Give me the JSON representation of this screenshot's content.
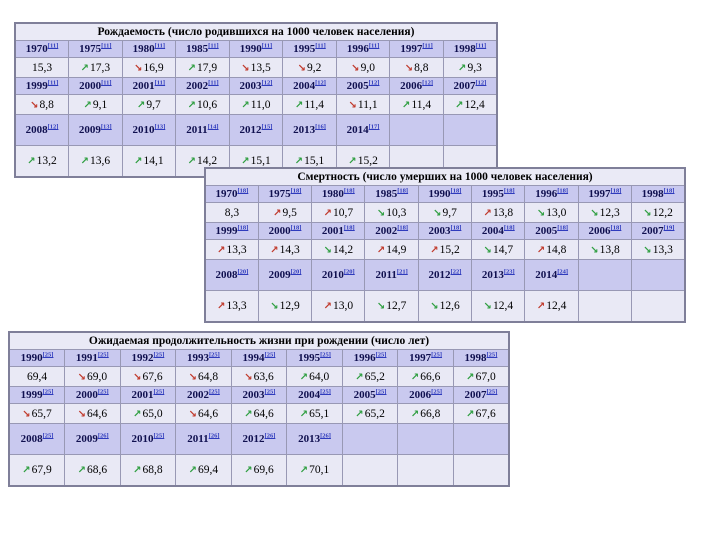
{
  "meta": {
    "language": "ru",
    "accent_colors": {
      "good_trend_green": "#2e9e40",
      "bad_trend_red": "#c0392b",
      "year_header_bg": "#c9c9ef",
      "value_cell_bg": "#e9e9f5",
      "citation_blue": "#2f3bbd"
    }
  },
  "tables": [
    {
      "name": "birth-rate",
      "title": "Рождаемость (число родившихся на 1000 человек населения)",
      "blocks": [
        {
          "years": [
            {
              "y": "1970",
              "c": "[11]"
            },
            {
              "y": "1975",
              "c": "[11]"
            },
            {
              "y": "1980",
              "c": "[11]"
            },
            {
              "y": "1985",
              "c": "[11]"
            },
            {
              "y": "1990",
              "c": "[11]"
            },
            {
              "y": "1995",
              "c": "[11]"
            },
            {
              "y": "1996",
              "c": "[11]"
            },
            {
              "y": "1997",
              "c": "[11]"
            },
            {
              "y": "1998",
              "c": "[11]"
            }
          ],
          "values": [
            {
              "v": "15,3",
              "a": "",
              "k": ""
            },
            {
              "v": "17,3",
              "a": "up",
              "k": "g"
            },
            {
              "v": "16,9",
              "a": "down",
              "k": "r"
            },
            {
              "v": "17,9",
              "a": "up",
              "k": "g"
            },
            {
              "v": "13,5",
              "a": "down",
              "k": "r"
            },
            {
              "v": "9,2",
              "a": "down",
              "k": "r"
            },
            {
              "v": "9,0",
              "a": "down",
              "k": "r"
            },
            {
              "v": "8,8",
              "a": "down",
              "k": "r"
            },
            {
              "v": "9,3",
              "a": "up",
              "k": "g"
            }
          ]
        },
        {
          "years": [
            {
              "y": "1999",
              "c": "[11]"
            },
            {
              "y": "2000",
              "c": "[11]"
            },
            {
              "y": "2001",
              "c": "[11]"
            },
            {
              "y": "2002",
              "c": "[11]"
            },
            {
              "y": "2003",
              "c": "[12]"
            },
            {
              "y": "2004",
              "c": "[12]"
            },
            {
              "y": "2005",
              "c": "[12]"
            },
            {
              "y": "2006",
              "c": "[12]"
            },
            {
              "y": "2007",
              "c": "[12]"
            }
          ],
          "values": [
            {
              "v": "8,8",
              "a": "down",
              "k": "r"
            },
            {
              "v": "9,1",
              "a": "up",
              "k": "g"
            },
            {
              "v": "9,7",
              "a": "up",
              "k": "g"
            },
            {
              "v": "10,6",
              "a": "up",
              "k": "g"
            },
            {
              "v": "11,0",
              "a": "up",
              "k": "g"
            },
            {
              "v": "11,4",
              "a": "up",
              "k": "g"
            },
            {
              "v": "11,1",
              "a": "down",
              "k": "r"
            },
            {
              "v": "11,4",
              "a": "up",
              "k": "g"
            },
            {
              "v": "12,4",
              "a": "up",
              "k": "g"
            }
          ]
        },
        {
          "years": [
            {
              "y": "2008",
              "c": "[12]"
            },
            {
              "y": "2009",
              "c": "[13]"
            },
            {
              "y": "2010",
              "c": "[13]"
            },
            {
              "y": "2011",
              "c": "[14]"
            },
            {
              "y": "2012",
              "c": "[15]"
            },
            {
              "y": "2013",
              "c": "[16]"
            },
            {
              "y": "2014",
              "c": "[17]"
            },
            {
              "y": "",
              "c": ""
            },
            {
              "y": "",
              "c": ""
            }
          ],
          "values": [
            {
              "v": "13,2",
              "a": "up",
              "k": "g"
            },
            {
              "v": "13,6",
              "a": "up",
              "k": "g"
            },
            {
              "v": "14,1",
              "a": "up",
              "k": "g"
            },
            {
              "v": "14,2",
              "a": "up",
              "k": "g"
            },
            {
              "v": "15,1",
              "a": "up",
              "k": "g"
            },
            {
              "v": "15,1",
              "a": "up",
              "k": "g"
            },
            {
              "v": "15,2",
              "a": "up",
              "k": "g"
            },
            {
              "v": "",
              "a": "",
              "k": ""
            },
            {
              "v": "",
              "a": "",
              "k": ""
            }
          ]
        }
      ]
    },
    {
      "name": "death-rate",
      "title": "Смертность (число умерших на 1000 человек населения)",
      "blocks": [
        {
          "years": [
            {
              "y": "1970",
              "c": "[18]"
            },
            {
              "y": "1975",
              "c": "[18]"
            },
            {
              "y": "1980",
              "c": "[18]"
            },
            {
              "y": "1985",
              "c": "[18]"
            },
            {
              "y": "1990",
              "c": "[18]"
            },
            {
              "y": "1995",
              "c": "[18]"
            },
            {
              "y": "1996",
              "c": "[18]"
            },
            {
              "y": "1997",
              "c": "[18]"
            },
            {
              "y": "1998",
              "c": "[18]"
            }
          ],
          "values": [
            {
              "v": "8,3",
              "a": "",
              "k": ""
            },
            {
              "v": "9,5",
              "a": "up",
              "k": "r"
            },
            {
              "v": "10,7",
              "a": "up",
              "k": "r"
            },
            {
              "v": "10,3",
              "a": "down",
              "k": "g"
            },
            {
              "v": "9,7",
              "a": "down",
              "k": "g"
            },
            {
              "v": "13,8",
              "a": "up",
              "k": "r"
            },
            {
              "v": "13,0",
              "a": "down",
              "k": "g"
            },
            {
              "v": "12,3",
              "a": "down",
              "k": "g"
            },
            {
              "v": "12,2",
              "a": "down",
              "k": "g"
            }
          ]
        },
        {
          "years": [
            {
              "y": "1999",
              "c": "[18]"
            },
            {
              "y": "2000",
              "c": "[18]"
            },
            {
              "y": "2001",
              "c": "[18]"
            },
            {
              "y": "2002",
              "c": "[18]"
            },
            {
              "y": "2003",
              "c": "[18]"
            },
            {
              "y": "2004",
              "c": "[18]"
            },
            {
              "y": "2005",
              "c": "[18]"
            },
            {
              "y": "2006",
              "c": "[18]"
            },
            {
              "y": "2007",
              "c": "[19]"
            }
          ],
          "values": [
            {
              "v": "13,3",
              "a": "up",
              "k": "r"
            },
            {
              "v": "14,3",
              "a": "up",
              "k": "r"
            },
            {
              "v": "14,2",
              "a": "down",
              "k": "g"
            },
            {
              "v": "14,9",
              "a": "up",
              "k": "r"
            },
            {
              "v": "15,2",
              "a": "up",
              "k": "r"
            },
            {
              "v": "14,7",
              "a": "down",
              "k": "g"
            },
            {
              "v": "14,8",
              "a": "up",
              "k": "r"
            },
            {
              "v": "13,8",
              "a": "down",
              "k": "g"
            },
            {
              "v": "13,3",
              "a": "down",
              "k": "g"
            }
          ]
        },
        {
          "years": [
            {
              "y": "2008",
              "c": "[20]"
            },
            {
              "y": "2009",
              "c": "[20]"
            },
            {
              "y": "2010",
              "c": "[20]"
            },
            {
              "y": "2011",
              "c": "[21]"
            },
            {
              "y": "2012",
              "c": "[22]"
            },
            {
              "y": "2013",
              "c": "[23]"
            },
            {
              "y": "2014",
              "c": "[24]"
            },
            {
              "y": "",
              "c": ""
            },
            {
              "y": "",
              "c": ""
            }
          ],
          "values": [
            {
              "v": "13,3",
              "a": "up",
              "k": "r"
            },
            {
              "v": "12,9",
              "a": "down",
              "k": "g"
            },
            {
              "v": "13,0",
              "a": "up",
              "k": "r"
            },
            {
              "v": "12,7",
              "a": "down",
              "k": "g"
            },
            {
              "v": "12,6",
              "a": "down",
              "k": "g"
            },
            {
              "v": "12,4",
              "a": "down",
              "k": "g"
            },
            {
              "v": "12,4",
              "a": "up",
              "k": "r"
            },
            {
              "v": "",
              "a": "",
              "k": ""
            },
            {
              "v": "",
              "a": "",
              "k": ""
            }
          ]
        }
      ]
    },
    {
      "name": "life-expectancy",
      "title": "Ожидаемая продолжительность жизни при рождении (число лет)",
      "blocks": [
        {
          "years": [
            {
              "y": "1990",
              "c": "[25]"
            },
            {
              "y": "1991",
              "c": "[25]"
            },
            {
              "y": "1992",
              "c": "[25]"
            },
            {
              "y": "1993",
              "c": "[25]"
            },
            {
              "y": "1994",
              "c": "[25]"
            },
            {
              "y": "1995",
              "c": "[25]"
            },
            {
              "y": "1996",
              "c": "[25]"
            },
            {
              "y": "1997",
              "c": "[25]"
            },
            {
              "y": "1998",
              "c": "[25]"
            }
          ],
          "values": [
            {
              "v": "69,4",
              "a": "",
              "k": ""
            },
            {
              "v": "69,0",
              "a": "down",
              "k": "r"
            },
            {
              "v": "67,6",
              "a": "down",
              "k": "r"
            },
            {
              "v": "64,8",
              "a": "down",
              "k": "r"
            },
            {
              "v": "63,6",
              "a": "down",
              "k": "r"
            },
            {
              "v": "64,0",
              "a": "up",
              "k": "g"
            },
            {
              "v": "65,2",
              "a": "up",
              "k": "g"
            },
            {
              "v": "66,6",
              "a": "up",
              "k": "g"
            },
            {
              "v": "67,0",
              "a": "up",
              "k": "g"
            }
          ]
        },
        {
          "years": [
            {
              "y": "1999",
              "c": "[25]"
            },
            {
              "y": "2000",
              "c": "[25]"
            },
            {
              "y": "2001",
              "c": "[25]"
            },
            {
              "y": "2002",
              "c": "[25]"
            },
            {
              "y": "2003",
              "c": "[25]"
            },
            {
              "y": "2004",
              "c": "[25]"
            },
            {
              "y": "2005",
              "c": "[25]"
            },
            {
              "y": "2006",
              "c": "[25]"
            },
            {
              "y": "2007",
              "c": "[25]"
            }
          ],
          "values": [
            {
              "v": "65,7",
              "a": "down",
              "k": "r"
            },
            {
              "v": "64,6",
              "a": "down",
              "k": "r"
            },
            {
              "v": "65,0",
              "a": "up",
              "k": "g"
            },
            {
              "v": "64,6",
              "a": "down",
              "k": "r"
            },
            {
              "v": "64,6",
              "a": "up",
              "k": "g"
            },
            {
              "v": "65,1",
              "a": "up",
              "k": "g"
            },
            {
              "v": "65,2",
              "a": "up",
              "k": "g"
            },
            {
              "v": "66,8",
              "a": "up",
              "k": "g"
            },
            {
              "v": "67,6",
              "a": "up",
              "k": "g"
            }
          ]
        },
        {
          "years": [
            {
              "y": "2008",
              "c": "[25]"
            },
            {
              "y": "2009",
              "c": "[26]"
            },
            {
              "y": "2010",
              "c": "[25]"
            },
            {
              "y": "2011",
              "c": "[26]"
            },
            {
              "y": "2012",
              "c": "[26]"
            },
            {
              "y": "2013",
              "c": "[26]"
            },
            {
              "y": "",
              "c": ""
            },
            {
              "y": "",
              "c": ""
            },
            {
              "y": "",
              "c": ""
            }
          ],
          "values": [
            {
              "v": "67,9",
              "a": "up",
              "k": "g"
            },
            {
              "v": "68,6",
              "a": "up",
              "k": "g"
            },
            {
              "v": "68,8",
              "a": "up",
              "k": "g"
            },
            {
              "v": "69,4",
              "a": "up",
              "k": "g"
            },
            {
              "v": "69,6",
              "a": "up",
              "k": "g"
            },
            {
              "v": "70,1",
              "a": "up",
              "k": "g"
            },
            {
              "v": "",
              "a": "",
              "k": ""
            },
            {
              "v": "",
              "a": "",
              "k": ""
            },
            {
              "v": "",
              "a": "",
              "k": ""
            }
          ]
        }
      ]
    }
  ]
}
